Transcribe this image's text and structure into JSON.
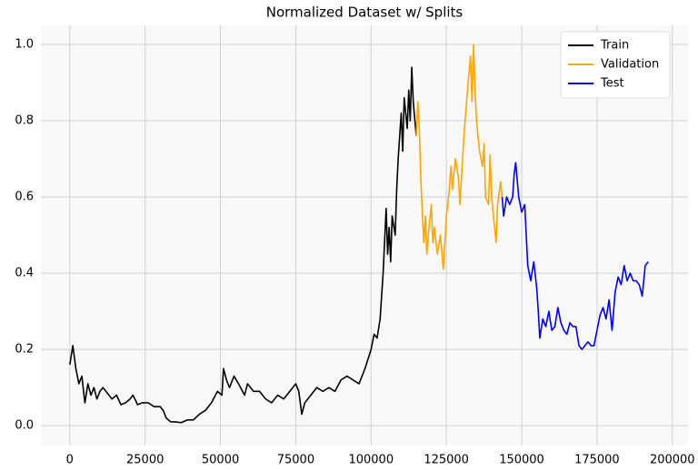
{
  "chart_data": {
    "type": "line",
    "title": "Normalized Dataset w/ Splits",
    "xlim": [
      -9600,
      205200
    ],
    "ylim": [
      -0.052,
      1.05
    ],
    "xticks": [
      0,
      25000,
      50000,
      75000,
      100000,
      125000,
      150000,
      175000,
      200000
    ],
    "yticks": [
      {
        "value": 0,
        "label": "0.0"
      },
      0.2,
      0.4,
      0.6,
      0.8,
      {
        "value": 1,
        "label": "1.0"
      }
    ],
    "grid": true,
    "legend": "upper right",
    "series": [
      {
        "name": "Train",
        "color": "#000000",
        "x": [
          0,
          1000,
          2000,
          3000,
          4000,
          5000,
          6000,
          7000,
          8000,
          9000,
          10000,
          11000,
          12500,
          14000,
          15500,
          17000,
          18500,
          20000,
          21000,
          22500,
          24000,
          26000,
          28000,
          30000,
          31000,
          32000,
          33500,
          35000,
          37000,
          39000,
          41000,
          43000,
          45000,
          47000,
          49000,
          50500,
          51000,
          52000,
          53000,
          54500,
          56000,
          58000,
          59000,
          61000,
          63000,
          65000,
          67000,
          69000,
          71000,
          73000,
          75000,
          76000,
          77000,
          78000,
          80000,
          82000,
          84000,
          86000,
          88000,
          90000,
          92000,
          94000,
          96000,
          98000,
          100000,
          101000,
          102000,
          103000,
          104000,
          105000,
          105500,
          106000,
          106500,
          107000,
          108000,
          108500,
          109000,
          110000,
          110500,
          111000,
          112000,
          112500,
          113000,
          113500,
          114000,
          115000
        ],
        "values": [
          0.16,
          0.21,
          0.15,
          0.11,
          0.13,
          0.06,
          0.11,
          0.08,
          0.1,
          0.07,
          0.09,
          0.1,
          0.085,
          0.07,
          0.08,
          0.055,
          0.06,
          0.07,
          0.08,
          0.055,
          0.06,
          0.06,
          0.05,
          0.05,
          0.04,
          0.02,
          0.01,
          0.01,
          0.008,
          0.015,
          0.015,
          0.03,
          0.04,
          0.06,
          0.09,
          0.08,
          0.15,
          0.12,
          0.1,
          0.13,
          0.11,
          0.08,
          0.11,
          0.09,
          0.09,
          0.07,
          0.06,
          0.08,
          0.07,
          0.09,
          0.11,
          0.09,
          0.03,
          0.06,
          0.08,
          0.1,
          0.09,
          0.1,
          0.09,
          0.12,
          0.13,
          0.12,
          0.11,
          0.15,
          0.2,
          0.24,
          0.23,
          0.28,
          0.4,
          0.57,
          0.45,
          0.52,
          0.43,
          0.55,
          0.5,
          0.62,
          0.7,
          0.82,
          0.72,
          0.86,
          0.78,
          0.88,
          0.8,
          0.94,
          0.85,
          0.76
        ]
      },
      {
        "name": "Validation",
        "color": "#ffa500",
        "x": [
          115000,
          115500,
          116000,
          116500,
          117000,
          117500,
          118000,
          118500,
          119000,
          120000,
          120500,
          121000,
          122000,
          123000,
          124000,
          125000,
          126000,
          126500,
          127000,
          128000,
          129000,
          129500,
          130000,
          131000,
          132000,
          133000,
          133500,
          134000,
          134500,
          135000,
          136000,
          137000,
          137500,
          138000,
          139000,
          139500,
          140000,
          141000,
          141500,
          142000,
          143000,
          143500
        ],
        "values": [
          0.76,
          0.85,
          0.78,
          0.65,
          0.56,
          0.48,
          0.55,
          0.45,
          0.5,
          0.58,
          0.48,
          0.52,
          0.45,
          0.5,
          0.41,
          0.55,
          0.62,
          0.68,
          0.62,
          0.7,
          0.65,
          0.58,
          0.65,
          0.78,
          0.88,
          0.97,
          0.85,
          1.0,
          0.88,
          0.8,
          0.72,
          0.68,
          0.74,
          0.6,
          0.58,
          0.71,
          0.6,
          0.52,
          0.48,
          0.58,
          0.64,
          0.6
        ]
      },
      {
        "name": "Test",
        "color": "#0000ff",
        "x": [
          143500,
          144000,
          145000,
          146000,
          147000,
          147500,
          148000,
          149000,
          150000,
          151000,
          151500,
          152000,
          153000,
          154000,
          155000,
          155500,
          156000,
          157000,
          158000,
          159000,
          160000,
          161000,
          162000,
          163000,
          164000,
          165000,
          166000,
          167000,
          168000,
          169000,
          170000,
          171000,
          172000,
          173000,
          174000,
          175000,
          176000,
          177000,
          178000,
          179000,
          180000,
          181000,
          182000,
          183000,
          184000,
          185000,
          186000,
          187000,
          188000,
          189000,
          190000,
          191000,
          192000
        ],
        "values": [
          0.6,
          0.55,
          0.6,
          0.58,
          0.6,
          0.66,
          0.69,
          0.6,
          0.56,
          0.58,
          0.5,
          0.42,
          0.38,
          0.43,
          0.36,
          0.3,
          0.23,
          0.28,
          0.26,
          0.3,
          0.25,
          0.26,
          0.31,
          0.27,
          0.25,
          0.24,
          0.27,
          0.26,
          0.26,
          0.21,
          0.2,
          0.21,
          0.22,
          0.21,
          0.21,
          0.25,
          0.29,
          0.31,
          0.28,
          0.33,
          0.25,
          0.35,
          0.39,
          0.37,
          0.42,
          0.38,
          0.4,
          0.38,
          0.38,
          0.37,
          0.34,
          0.42,
          0.43
        ]
      }
    ]
  }
}
